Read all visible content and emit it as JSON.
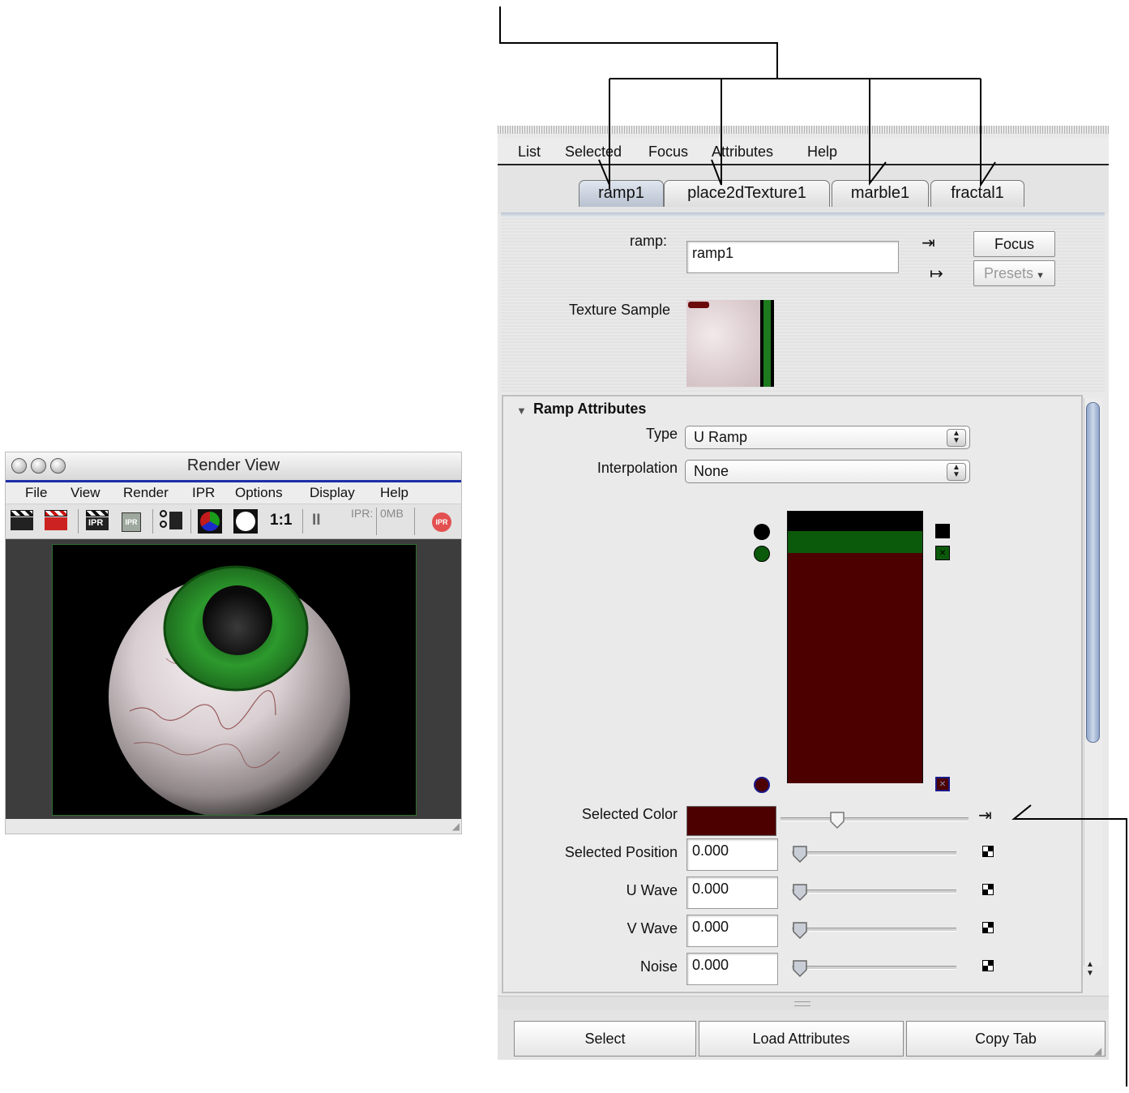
{
  "render_view": {
    "title": "Render View",
    "menu": [
      "File",
      "View",
      "Render",
      "IPR",
      "Options",
      "Display",
      "Help"
    ],
    "toolbar": {
      "icons": [
        "render-frame-icon",
        "redo-previous-render-icon",
        "ipr-render-icon",
        "refresh-ipr-icon",
        "render-region-icon",
        "display-rgb-icon",
        "display-alpha-icon"
      ],
      "ratio": "1:1",
      "pause": "II",
      "ipr_label": "IPR:",
      "ipr_memory": "0MB",
      "ipr_stop": "IPR"
    }
  },
  "attribute_editor": {
    "menu": [
      "List",
      "Selected",
      "Focus",
      "Attributes",
      "Help"
    ],
    "tabs": [
      "ramp1",
      "place2dTexture1",
      "marble1",
      "fractal1"
    ],
    "active_tab": "ramp1",
    "node_label": "ramp:",
    "node_name": "ramp1",
    "focus_button": "Focus",
    "presets_button": "Presets",
    "texture_sample_label": "Texture Sample",
    "section_title": "Ramp Attributes",
    "type_label": "Type",
    "type_value": "U Ramp",
    "interpolation_label": "Interpolation",
    "interpolation_value": "None",
    "ramp_colors": [
      "#000000",
      "#0b5a0b",
      "#4d0000"
    ],
    "selected_color_label": "Selected Color",
    "selected_color": "#4d0000",
    "selected_color_slider": 0.3,
    "fields": [
      {
        "label": "Selected Position",
        "value": "0.000"
      },
      {
        "label": "U Wave",
        "value": "0.000"
      },
      {
        "label": "V Wave",
        "value": "0.000"
      },
      {
        "label": "Noise",
        "value": "0.000"
      }
    ],
    "buttons": [
      "Select",
      "Load Attributes",
      "Copy Tab"
    ]
  }
}
